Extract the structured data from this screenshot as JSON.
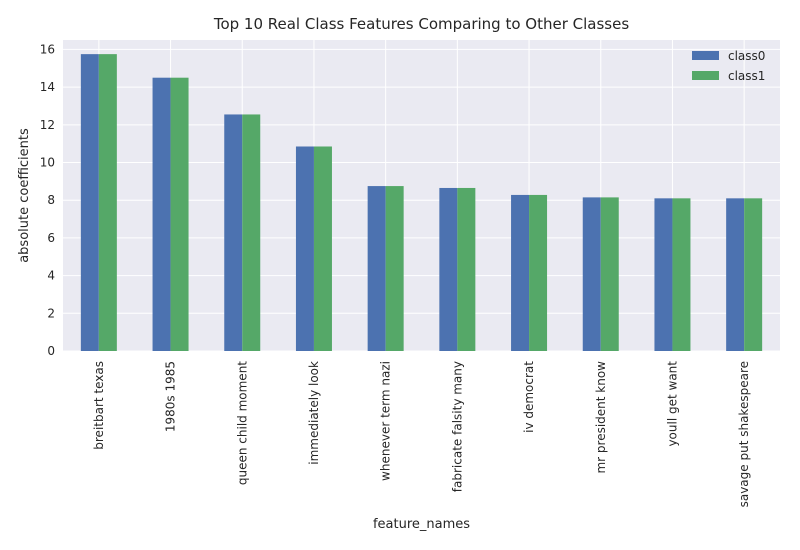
{
  "chart_data": {
    "type": "bar",
    "title": "Top 10 Real Class Features Comparing to Other Classes",
    "xlabel": "feature_names",
    "ylabel": "absolute coefficients",
    "categories": [
      "breitbart texas",
      "1980s 1985",
      "queen child moment",
      "immediately look",
      "whenever term nazi",
      "fabricate falsity many",
      "iv democrat",
      "mr president know",
      "youll get want",
      "savage put shakespeare"
    ],
    "series": [
      {
        "name": "class0",
        "color": "#4c72b0",
        "values": [
          15.75,
          14.5,
          12.55,
          10.85,
          8.75,
          8.65,
          8.28,
          8.15,
          8.1,
          8.1
        ]
      },
      {
        "name": "class1",
        "color": "#55a868",
        "values": [
          15.75,
          14.5,
          12.55,
          10.85,
          8.75,
          8.65,
          8.28,
          8.15,
          8.1,
          8.1
        ]
      }
    ],
    "ylim": [
      0,
      16.5
    ],
    "yticks": [
      0,
      2,
      4,
      6,
      8,
      10,
      12,
      14,
      16
    ],
    "grid": true,
    "legend_position": "top-right",
    "plot_background": "#eaeaf2"
  }
}
